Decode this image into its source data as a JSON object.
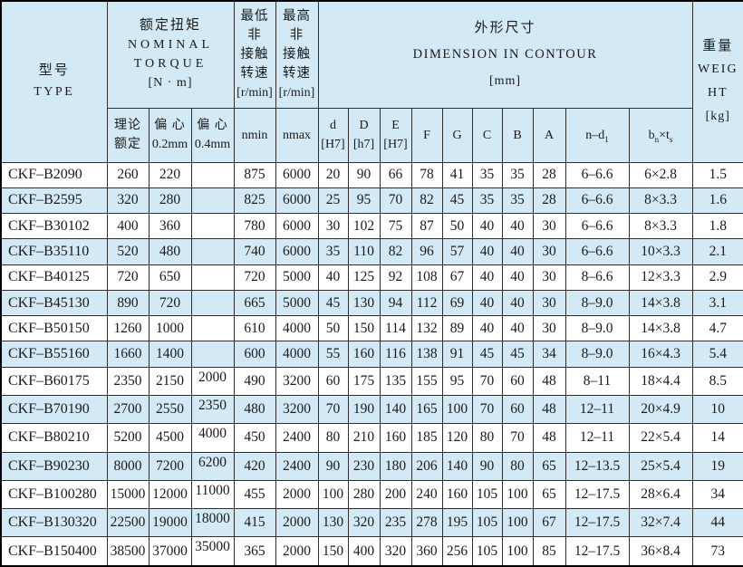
{
  "colors": {
    "header_bg": "#d3e9f6",
    "row_alt_bg": "#d3e9f6",
    "row_bg": "#ffffff",
    "border": "#2e2e2e",
    "outer_border": "#000000",
    "text": "#1a1a1a"
  },
  "table": {
    "header": {
      "type": {
        "zh": "型号",
        "en": "TYPE"
      },
      "torque": {
        "zh": "额定扭矩",
        "en1": "NOMINAL",
        "en2": "TORQUE",
        "unit": "[N · m]"
      },
      "nmin_group": {
        "l1": "最低非",
        "l2": "接触",
        "l3": "转速",
        "unit": "[r/min]"
      },
      "nmax_group": {
        "l1": "最高非",
        "l2": "接触",
        "l3": "转速",
        "unit": "[r/min]"
      },
      "dimension": {
        "zh": "外形尺寸",
        "en": "DIMENSION IN CONTOUR",
        "unit": "[mm]"
      },
      "weight": {
        "zh": "重量",
        "en1": "WEIG",
        "en2": "HT",
        "unit": "[kg]"
      },
      "sub": {
        "rated_l1": "理论",
        "rated_l2": "额定",
        "ecc02_l1": "偏 心",
        "ecc02_l2": "0.2mm",
        "ecc04_l1": "偏 心",
        "ecc04_l2": "0.4mm",
        "nmin": "nmin",
        "nmax": "nmax",
        "d_l1": "d",
        "d_l2": "[H7]",
        "D_l1": "D",
        "D_l2": "[h7]",
        "E_l1": "E",
        "E_l2": "[H7]",
        "F": "F",
        "G": "G",
        "C": "C",
        "B": "B",
        "A": "A",
        "n_d1_main": "n–d",
        "n_d1_sub": "1",
        "keyway_b": "b",
        "keyway_b_sub": "n",
        "keyway_times": "×",
        "keyway_t": "t",
        "keyway_t_sub": "s"
      }
    },
    "column_keys": [
      "type",
      "rated",
      "ecc02",
      "ecc04",
      "nmin",
      "nmax",
      "d",
      "D",
      "E",
      "F",
      "G",
      "C",
      "B",
      "A",
      "n_d1",
      "keyway",
      "weight"
    ],
    "rows": [
      [
        "CKF–B2090",
        "260",
        "220",
        "",
        "875",
        "6000",
        "20",
        "90",
        "66",
        "78",
        "41",
        "35",
        "35",
        "28",
        "6–6.6",
        "6×2.8",
        "1.5"
      ],
      [
        "CKF–B2595",
        "320",
        "280",
        "",
        "825",
        "6000",
        "25",
        "95",
        "70",
        "82",
        "45",
        "35",
        "35",
        "28",
        "6–6.6",
        "8×3.3",
        "1.6"
      ],
      [
        "CKF–B30102",
        "400",
        "360",
        "",
        "780",
        "6000",
        "30",
        "102",
        "75",
        "87",
        "50",
        "40",
        "40",
        "30",
        "6–6.6",
        "8×3.3",
        "1.8"
      ],
      [
        "CKF–B35110",
        "520",
        "480",
        "",
        "740",
        "6000",
        "35",
        "110",
        "82",
        "96",
        "57",
        "40",
        "40",
        "30",
        "6–6.6",
        "10×3.3",
        "2.1"
      ],
      [
        "CKF–B40125",
        "720",
        "650",
        "",
        "720",
        "5000",
        "40",
        "125",
        "92",
        "108",
        "67",
        "40",
        "40",
        "30",
        "8–6.6",
        "12×3.3",
        "2.9"
      ],
      [
        "CKF–B45130",
        "890",
        "720",
        "",
        "665",
        "5000",
        "45",
        "130",
        "94",
        "112",
        "69",
        "40",
        "40",
        "30",
        "8–9.0",
        "14×3.8",
        "3.1"
      ],
      [
        "CKF–B50150",
        "1260",
        "1000",
        "",
        "610",
        "4000",
        "50",
        "150",
        "114",
        "132",
        "89",
        "40",
        "40",
        "30",
        "8–9.0",
        "14×3.8",
        "4.7"
      ],
      [
        "CKF–B55160",
        "1660",
        "1400",
        "",
        "600",
        "4000",
        "55",
        "160",
        "116",
        "138",
        "91",
        "45",
        "45",
        "34",
        "8–9.0",
        "16×4.3",
        "5.4"
      ],
      [
        "CKF–B60175",
        "2350",
        "2150",
        "2000",
        "490",
        "3200",
        "60",
        "175",
        "135",
        "155",
        "95",
        "70",
        "60",
        "48",
        "8–11",
        "18×4.4",
        "8.5"
      ],
      [
        "CKF–B70190",
        "2700",
        "2550",
        "2350",
        "480",
        "3200",
        "70",
        "190",
        "140",
        "165",
        "100",
        "70",
        "60",
        "48",
        "12–11",
        "20×4.9",
        "10"
      ],
      [
        "CKF–B80210",
        "5200",
        "4500",
        "4000",
        "450",
        "2400",
        "80",
        "210",
        "160",
        "185",
        "120",
        "80",
        "70",
        "48",
        "12–11",
        "22×5.4",
        "14"
      ],
      [
        "CKF–B90230",
        "8000",
        "7200",
        "6200",
        "420",
        "2400",
        "90",
        "230",
        "180",
        "206",
        "140",
        "90",
        "80",
        "65",
        "12–13.5",
        "25×5.4",
        "19"
      ],
      [
        "CKF–B100280",
        "15000",
        "12000",
        "11000",
        "455",
        "2000",
        "100",
        "280",
        "200",
        "240",
        "160",
        "105",
        "100",
        "65",
        "12–17.5",
        "28×6.4",
        "34"
      ],
      [
        "CKF–B130320",
        "22500",
        "19000",
        "18000",
        "415",
        "2000",
        "130",
        "320",
        "235",
        "278",
        "195",
        "105",
        "100",
        "67",
        "12–17.5",
        "32×7.4",
        "44"
      ],
      [
        "CKF–B150400",
        "38500",
        "37000",
        "35000",
        "365",
        "2000",
        "150",
        "400",
        "320",
        "360",
        "256",
        "105",
        "100",
        "85",
        "12–17.5",
        "36×8.4",
        "73"
      ]
    ]
  }
}
